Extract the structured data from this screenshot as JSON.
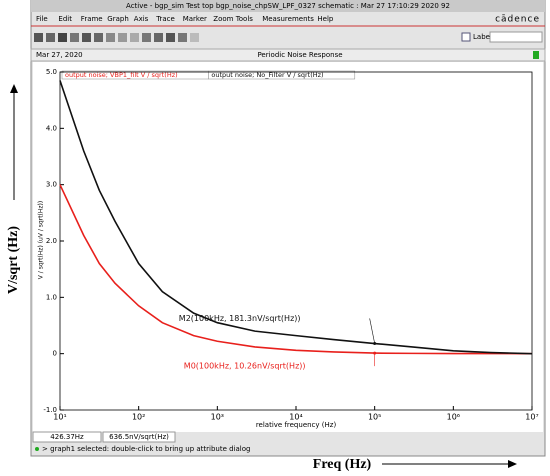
{
  "window": {
    "title": "Active - bgp_sim Test top bgp_noise_chpSW_LPF_0327 schematic : Mar 27 17:10:29 2020 92",
    "menu": [
      "File",
      "Edit",
      "Frame",
      "Graph",
      "Axis",
      "Trace",
      "Marker",
      "Zoom",
      "Tools",
      "Measurements",
      "Help"
    ],
    "brand": "cādence",
    "label_checkbox": "Label",
    "date": "Mar 27, 2020",
    "status_x": "426.37Hz",
    "status_y": "636.5nV/sqrt(Hz)",
    "status_message": "> graph1 selected: double-click to bring up attribute dialog"
  },
  "outer_labels": {
    "y": "V/sqrt (Hz)",
    "x": "Freq (Hz)"
  },
  "chart_data": {
    "type": "line",
    "title": "Periodic Noise Response",
    "x_label": "relative frequency (Hz)",
    "y_label": "V / sqrt(Hz) (uV / sqrt(Hz))",
    "x_log": true,
    "x": [
      10,
      20,
      31.6,
      50,
      100,
      200,
      500,
      1000,
      3000,
      10000,
      30000,
      100000,
      300000,
      1000000,
      3000000,
      10000000
    ],
    "series": [
      {
        "name": "output noise; VBP1_filt V / sqrt(Hz)",
        "color": "#e8201c",
        "values": [
          3.0,
          2.1,
          1.6,
          1.25,
          0.85,
          0.55,
          0.32,
          0.22,
          0.12,
          0.06,
          0.03,
          0.01,
          0.005,
          0.002,
          0.001,
          0
        ]
      },
      {
        "name": "output noise; No_Filter V / sqrt(Hz)",
        "color": "#111111",
        "values": [
          4.85,
          3.6,
          2.9,
          2.35,
          1.6,
          1.1,
          0.72,
          0.55,
          0.4,
          0.32,
          0.25,
          0.18,
          0.12,
          0.05,
          0.02,
          0
        ]
      }
    ],
    "markers": [
      {
        "label": "M2(100kHz, 181.3nV/sqrt(Hz))",
        "x": 100000,
        "y": 0.1813,
        "color": "#111111"
      },
      {
        "label": "M0(100kHz, 10.26nV/sqrt(Hz))",
        "x": 100000,
        "y": 0.01026,
        "color": "#e8201c"
      }
    ],
    "xlim": [
      10,
      10000000
    ],
    "xticks": [
      {
        "value": 10,
        "label": "10¹"
      },
      {
        "value": 100,
        "label": "10²"
      },
      {
        "value": 1000,
        "label": "10³"
      },
      {
        "value": 10000,
        "label": "10⁴"
      },
      {
        "value": 100000,
        "label": "10⁵"
      },
      {
        "value": 1000000,
        "label": "10⁶"
      },
      {
        "value": 10000000,
        "label": "10⁷"
      }
    ],
    "ylim": [
      -1,
      5
    ],
    "yticks": [
      {
        "value": 5,
        "label": "5.0"
      },
      {
        "value": 4,
        "label": "4.0"
      },
      {
        "value": 3,
        "label": "3.0"
      },
      {
        "value": 2,
        "label": "2.0"
      },
      {
        "value": 1,
        "label": "1.0"
      },
      0,
      {
        "value": -1,
        "label": "-1.0"
      }
    ],
    "grid": false
  }
}
